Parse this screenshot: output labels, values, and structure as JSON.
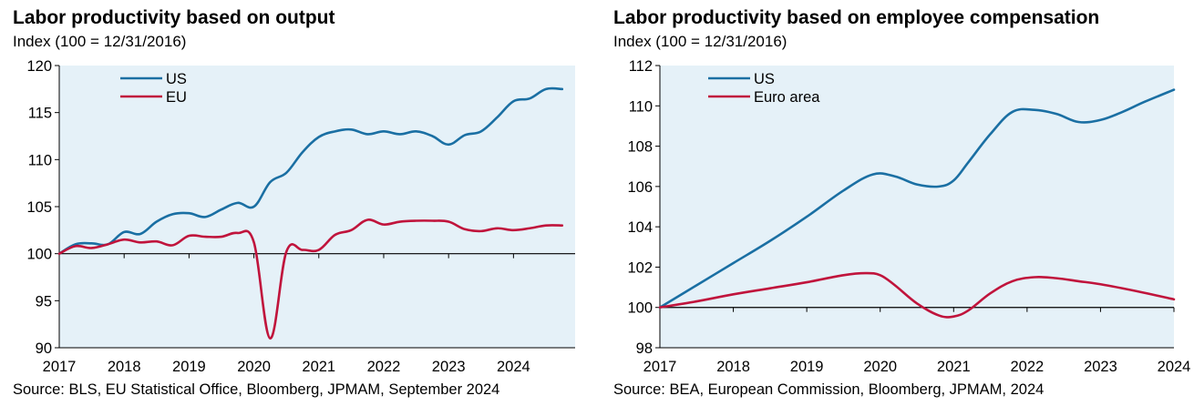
{
  "chart_data": [
    {
      "type": "line",
      "title": "Labor productivity based on output",
      "subtitle": "Index (100 = 12/31/2016)",
      "source": "Source: BLS, EU Statistical Office, Bloomberg, JPMAM, September 2024",
      "xlabel": "",
      "ylabel": "",
      "xlim": [
        2017,
        2024.95
      ],
      "ylim": [
        90,
        120
      ],
      "yticks": [
        90,
        95,
        100,
        105,
        110,
        115,
        120
      ],
      "xticks": [
        2017,
        2018,
        2019,
        2020,
        2021,
        2022,
        2023,
        2024
      ],
      "baseline": 100,
      "grid": false,
      "legend": "top-left",
      "colors": {
        "background": "#e5f1f8",
        "US": "#1a6fa3",
        "EU": "#c0143c"
      },
      "series": [
        {
          "name": "US",
          "x": [
            2017,
            2017.25,
            2017.5,
            2017.75,
            2018,
            2018.25,
            2018.5,
            2018.75,
            2019,
            2019.25,
            2019.5,
            2019.75,
            2020,
            2020.25,
            2020.5,
            2020.75,
            2021,
            2021.25,
            2021.5,
            2021.75,
            2022,
            2022.25,
            2022.5,
            2022.75,
            2023,
            2023.25,
            2023.5,
            2023.75,
            2024,
            2024.25,
            2024.5,
            2024.75
          ],
          "values": [
            100.0,
            101.0,
            101.1,
            101.0,
            102.3,
            102.1,
            103.4,
            104.2,
            104.3,
            103.9,
            104.7,
            105.4,
            105.0,
            107.6,
            108.6,
            110.8,
            112.4,
            113.0,
            113.2,
            112.7,
            113.0,
            112.7,
            113.0,
            112.5,
            111.6,
            112.6,
            113.0,
            114.5,
            116.2,
            116.5,
            117.5,
            117.5
          ]
        },
        {
          "name": "EU",
          "x": [
            2017,
            2017.25,
            2017.5,
            2017.75,
            2018,
            2018.25,
            2018.5,
            2018.75,
            2019,
            2019.25,
            2019.5,
            2019.75,
            2020,
            2020.25,
            2020.5,
            2020.75,
            2021,
            2021.25,
            2021.5,
            2021.75,
            2022,
            2022.25,
            2022.5,
            2022.75,
            2023,
            2023.25,
            2023.5,
            2023.75,
            2024,
            2024.25,
            2024.5,
            2024.75
          ],
          "values": [
            100.0,
            100.8,
            100.6,
            101.0,
            101.5,
            101.2,
            101.3,
            100.9,
            101.9,
            101.8,
            101.8,
            102.2,
            101.2,
            91.0,
            100.2,
            100.4,
            100.4,
            102.0,
            102.5,
            103.6,
            103.1,
            103.4,
            103.5,
            103.5,
            103.4,
            102.6,
            102.4,
            102.7,
            102.5,
            102.7,
            103.0,
            103.0
          ]
        }
      ]
    },
    {
      "type": "line",
      "title": "Labor productivity based on employee compensation",
      "subtitle": "Index (100 = 12/31/2016)",
      "source": "Source: BEA, European Commission, Bloomberg, JPMAM, 2024",
      "xlabel": "",
      "ylabel": "",
      "xlim": [
        2017,
        2024
      ],
      "ylim": [
        98,
        112
      ],
      "yticks": [
        98,
        100,
        102,
        104,
        106,
        108,
        110,
        112
      ],
      "xticks": [
        2017,
        2018,
        2019,
        2020,
        2021,
        2022,
        2023,
        2024
      ],
      "baseline": 100,
      "grid": false,
      "legend": "top-left",
      "colors": {
        "background": "#e5f1f8",
        "US": "#1a6fa3",
        "Euro area": "#c0143c"
      },
      "series": [
        {
          "name": "US",
          "x": [
            2017,
            2017.5,
            2018,
            2018.5,
            2019,
            2019.5,
            2019.9,
            2020.2,
            2020.5,
            2020.8,
            2021.0,
            2021.2,
            2021.5,
            2021.8,
            2022.1,
            2022.4,
            2022.7,
            2023.0,
            2023.3,
            2023.6,
            2024
          ],
          "values": [
            100.0,
            101.1,
            102.2,
            103.3,
            104.5,
            105.8,
            106.6,
            106.5,
            106.1,
            106.0,
            106.3,
            107.2,
            108.6,
            109.7,
            109.8,
            109.6,
            109.2,
            109.3,
            109.7,
            110.2,
            110.8
          ]
        },
        {
          "name": "Euro area",
          "x": [
            2017,
            2017.5,
            2018,
            2018.5,
            2019,
            2019.5,
            2019.8,
            2020.0,
            2020.2,
            2020.5,
            2020.8,
            2021.0,
            2021.2,
            2021.5,
            2021.8,
            2022.1,
            2022.4,
            2022.7,
            2023.0,
            2023.5,
            2024
          ],
          "values": [
            100.0,
            100.3,
            100.65,
            100.95,
            101.25,
            101.6,
            101.7,
            101.6,
            101.1,
            100.2,
            99.6,
            99.55,
            99.85,
            100.7,
            101.3,
            101.5,
            101.45,
            101.3,
            101.15,
            100.8,
            100.4
          ]
        }
      ]
    }
  ]
}
